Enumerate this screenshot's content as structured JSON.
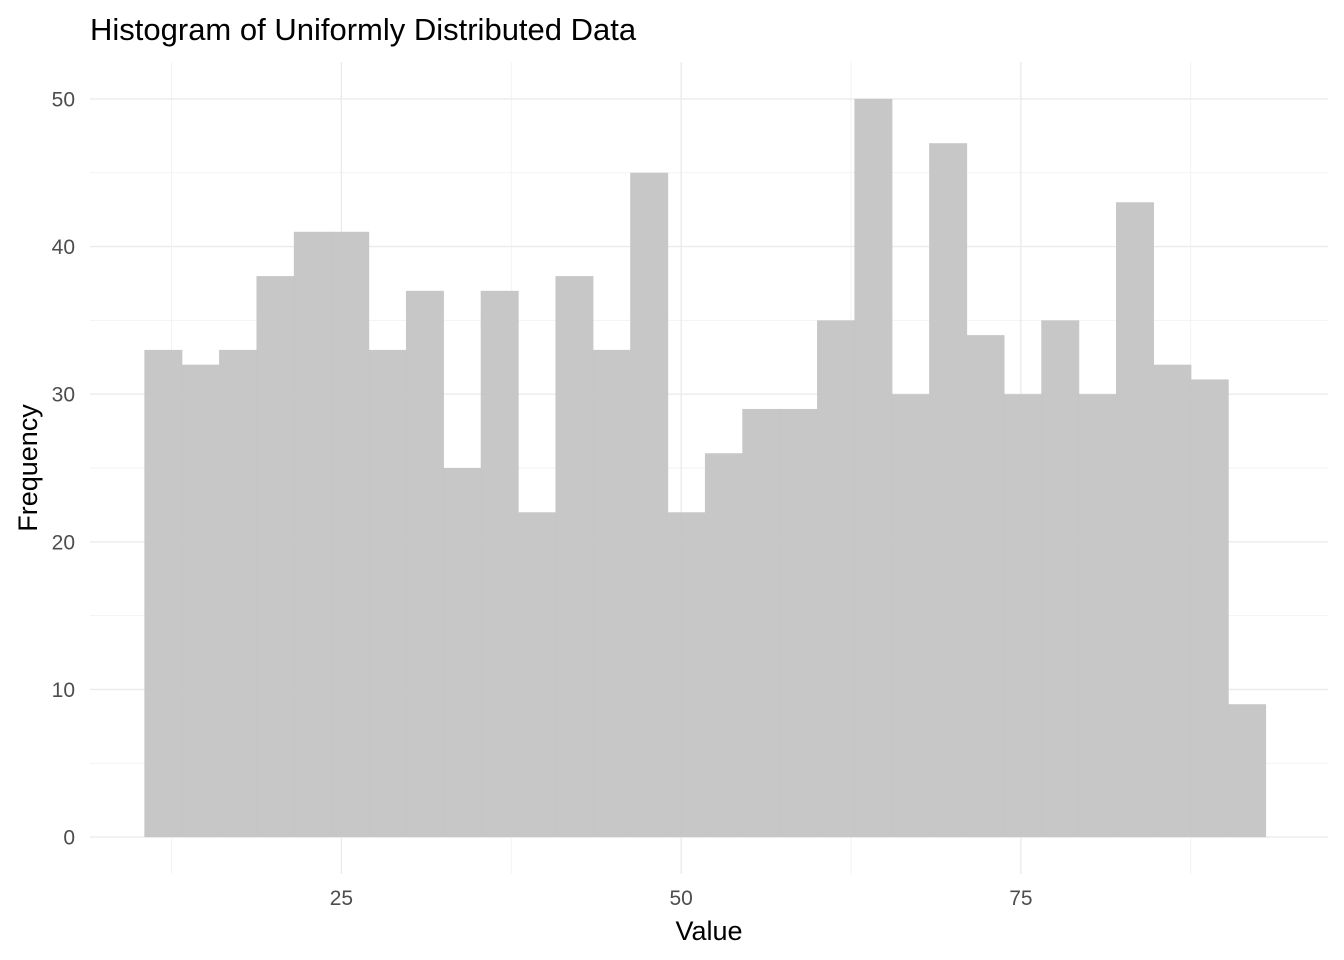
{
  "chart_data": {
    "type": "bar",
    "title": "Histogram of Uniformly Distributed Data",
    "xlabel": "Value",
    "ylabel": "Frequency",
    "bin_width": 2.75,
    "bin_start": 10.5,
    "values": [
      33,
      32,
      33,
      38,
      41,
      41,
      33,
      37,
      25,
      37,
      22,
      38,
      33,
      45,
      22,
      26,
      29,
      29,
      35,
      50,
      30,
      47,
      34,
      30,
      35,
      30,
      43,
      32,
      31,
      9
    ],
    "xlim": [
      6.5,
      97.6
    ],
    "ylim": [
      -2.5,
      52.5
    ],
    "x_ticks": [
      25,
      50,
      75
    ],
    "x_tick_labels": [
      "25",
      "50",
      "75"
    ],
    "y_ticks": [
      0,
      10,
      20,
      30,
      40,
      50
    ],
    "y_tick_labels": [
      "0",
      "10",
      "20",
      "30",
      "40",
      "50"
    ],
    "grid": true,
    "bar_color": "#c4c4c4",
    "legend": "none"
  }
}
